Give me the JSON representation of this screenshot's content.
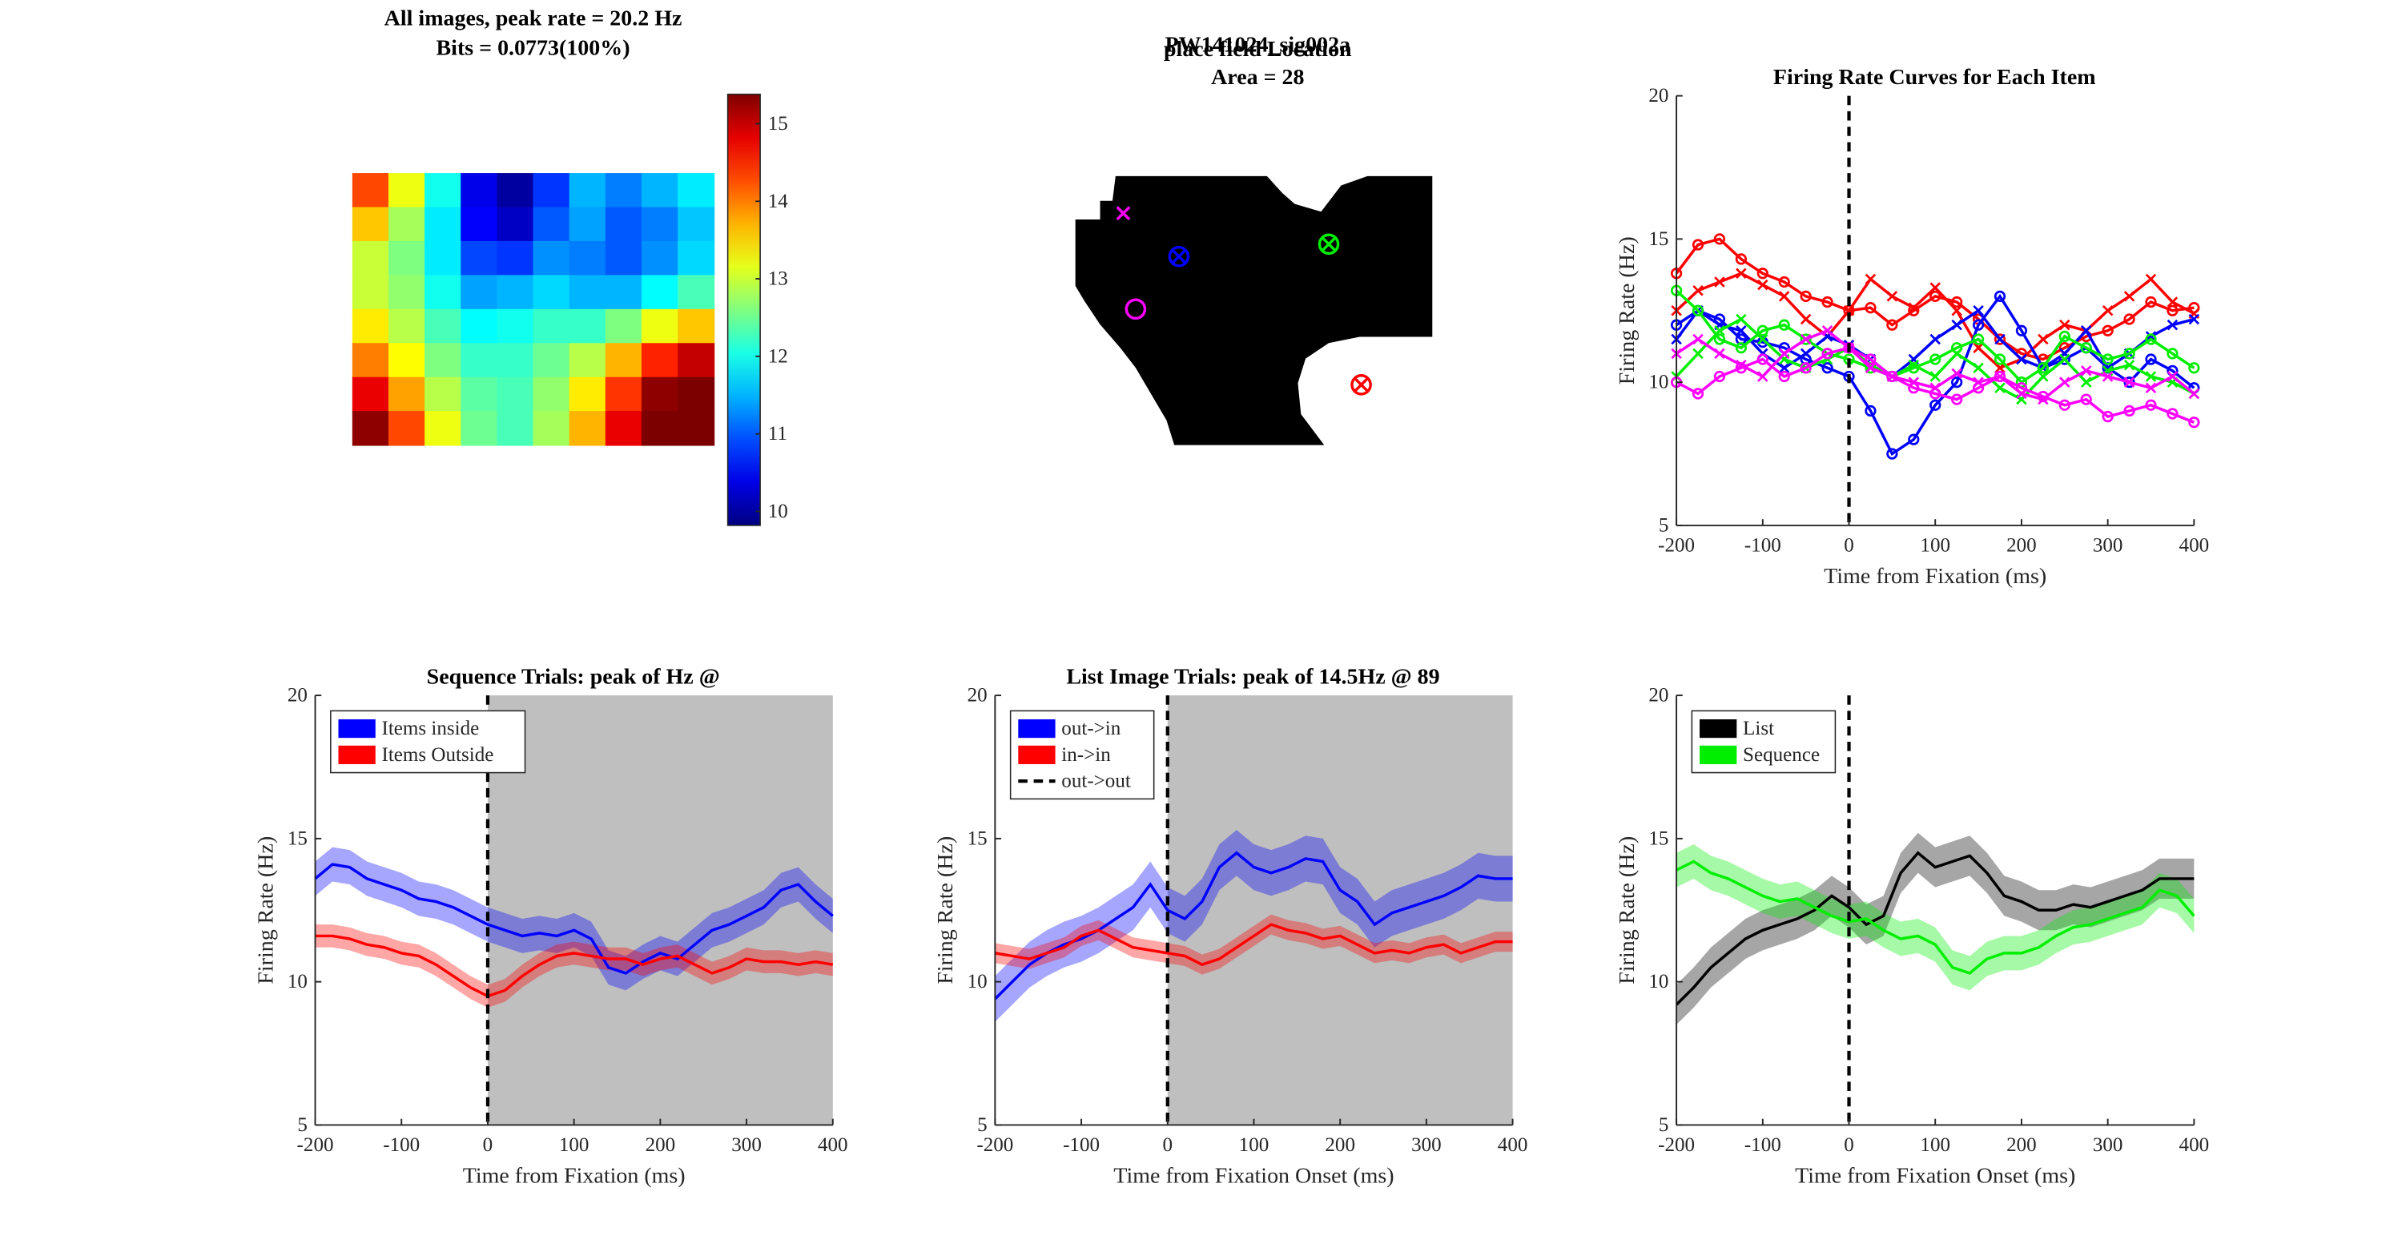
{
  "chart_data": [
    {
      "type": "heatmap",
      "title": [
        "All images, peak rate = 20.2 Hz",
        "Bits = 0.0773(100%)"
      ],
      "clim": [
        9.82,
        15.38
      ],
      "cticks": [
        10,
        11,
        12,
        13,
        14,
        15
      ],
      "colormap": "jet",
      "values": [
        [
          14.3,
          13.2,
          12.0,
          10.4,
          10.0,
          10.8,
          11.5,
          11.2,
          11.5,
          11.8
        ],
        [
          13.6,
          12.8,
          11.8,
          10.5,
          10.2,
          11.0,
          11.4,
          11.0,
          11.2,
          11.6
        ],
        [
          13.0,
          12.6,
          11.8,
          10.9,
          10.8,
          11.3,
          11.2,
          11.0,
          11.3,
          11.7
        ],
        [
          13.0,
          12.7,
          12.0,
          11.4,
          11.5,
          11.7,
          11.5,
          11.5,
          11.9,
          12.3
        ],
        [
          13.4,
          12.9,
          12.3,
          11.9,
          12.0,
          12.2,
          12.2,
          12.6,
          13.2,
          13.6
        ],
        [
          14.0,
          13.3,
          12.6,
          12.2,
          12.2,
          12.5,
          12.9,
          13.7,
          14.5,
          15.0
        ],
        [
          14.8,
          13.8,
          12.9,
          12.4,
          12.3,
          12.7,
          13.4,
          14.4,
          15.3,
          15.4
        ],
        [
          15.3,
          14.3,
          13.2,
          12.5,
          12.3,
          12.8,
          13.7,
          14.8,
          15.4,
          15.4
        ]
      ]
    },
    {
      "type": "mask",
      "title": [
        "PW141024_sig002a",
        "Area = 28"
      ],
      "overlay_title": "place field Location"
    },
    {
      "type": "line",
      "title": [
        "Firing Rate Curves for Each Item"
      ],
      "xlabel": "Time from Fixation (ms)",
      "ylabel": "Firing Rate (Hz)",
      "xlim": [
        -200,
        400
      ],
      "ylim": [
        5,
        20
      ],
      "xticks": [
        -200,
        -100,
        0,
        100,
        200,
        300,
        400
      ],
      "yticks": [
        5,
        10,
        15,
        20
      ],
      "vline": {
        "x": 0
      },
      "x": [
        -200,
        -175,
        -150,
        -125,
        -100,
        -75,
        -50,
        -25,
        0,
        25,
        50,
        75,
        100,
        125,
        150,
        175,
        200,
        225,
        250,
        275,
        300,
        325,
        350,
        375,
        400
      ],
      "series": [
        {
          "color": "#ff0000",
          "marker": "o",
          "values": [
            13.8,
            14.8,
            15.0,
            14.3,
            13.8,
            13.5,
            13.0,
            12.8,
            12.5,
            12.6,
            12.0,
            12.5,
            13.0,
            12.8,
            12.2,
            11.5,
            11.0,
            10.8,
            11.2,
            11.6,
            11.8,
            12.2,
            12.8,
            12.5,
            12.6
          ]
        },
        {
          "color": "#ff0000",
          "marker": "x",
          "values": [
            12.5,
            13.2,
            13.5,
            13.8,
            13.4,
            13.0,
            12.2,
            11.6,
            12.5,
            13.6,
            13.0,
            12.6,
            13.3,
            12.5,
            11.2,
            10.5,
            10.8,
            11.5,
            12.0,
            11.8,
            12.5,
            13.0,
            13.6,
            12.8,
            12.4
          ]
        },
        {
          "color": "#0000ff",
          "marker": "o",
          "values": [
            12.0,
            12.5,
            12.2,
            11.5,
            11.4,
            11.2,
            10.8,
            10.5,
            10.2,
            9.0,
            7.5,
            8.0,
            9.2,
            10.0,
            12.0,
            13.0,
            11.8,
            10.5,
            10.8,
            11.2,
            10.5,
            10.0,
            10.8,
            10.4,
            9.8
          ]
        },
        {
          "color": "#0000ff",
          "marker": "x",
          "values": [
            11.5,
            12.5,
            12.0,
            11.8,
            11.0,
            10.5,
            11.0,
            11.6,
            11.3,
            10.8,
            10.2,
            10.8,
            11.5,
            12.0,
            12.5,
            11.5,
            10.8,
            10.5,
            11.0,
            11.8,
            10.5,
            11.0,
            11.6,
            12.0,
            12.2
          ]
        },
        {
          "color": "#00ee00",
          "marker": "o",
          "values": [
            13.2,
            12.5,
            11.5,
            11.2,
            11.8,
            12.0,
            11.5,
            11.0,
            10.8,
            10.5,
            10.2,
            10.5,
            10.8,
            11.2,
            11.5,
            10.8,
            10.0,
            10.5,
            11.6,
            11.2,
            10.8,
            11.0,
            11.5,
            11.0,
            10.5
          ]
        },
        {
          "color": "#00ee00",
          "marker": "x",
          "values": [
            10.2,
            11.0,
            11.8,
            12.2,
            11.5,
            10.8,
            10.5,
            10.8,
            11.2,
            10.6,
            10.2,
            10.6,
            10.2,
            11.0,
            10.5,
            9.8,
            9.4,
            10.2,
            10.8,
            10.0,
            10.4,
            10.6,
            10.2,
            10.0,
            9.6
          ]
        },
        {
          "color": "#ff00ff",
          "marker": "o",
          "values": [
            10.0,
            9.6,
            10.2,
            10.5,
            10.8,
            10.2,
            10.5,
            11.0,
            11.2,
            10.8,
            10.2,
            9.8,
            9.6,
            9.4,
            9.8,
            10.2,
            9.8,
            9.5,
            9.2,
            9.4,
            8.8,
            9.0,
            9.2,
            8.9,
            8.6
          ]
        },
        {
          "color": "#ff00ff",
          "marker": "x",
          "values": [
            11.0,
            11.5,
            11.0,
            10.6,
            10.2,
            11.0,
            11.5,
            11.8,
            11.2,
            10.5,
            10.2,
            10.0,
            9.8,
            10.3,
            10.0,
            10.2,
            9.6,
            9.4,
            10.0,
            10.4,
            10.2,
            10.0,
            9.8,
            10.2,
            9.6
          ]
        }
      ]
    },
    {
      "type": "band",
      "title": [
        "Sequence Trials: peak of Hz @"
      ],
      "xlabel": "Time from Fixation (ms)",
      "ylabel": "Firing Rate (Hz)",
      "xlim": [
        -200,
        400
      ],
      "ylim": [
        5,
        20
      ],
      "xticks": [
        -200,
        -100,
        0,
        100,
        200,
        300,
        400
      ],
      "yticks": [
        5,
        10,
        15,
        20
      ],
      "vline": {
        "x": 0
      },
      "shade": [
        0,
        400
      ],
      "legend": "northwest",
      "x": [
        -200,
        -180,
        -160,
        -140,
        -120,
        -100,
        -80,
        -60,
        -40,
        -20,
        0,
        20,
        40,
        60,
        80,
        100,
        120,
        140,
        160,
        180,
        200,
        220,
        240,
        260,
        280,
        300,
        320,
        340,
        360,
        380,
        400
      ],
      "series": [
        {
          "name": "Items inside",
          "color": "#0000ff",
          "error": 0.6,
          "values": [
            13.6,
            14.1,
            14.0,
            13.6,
            13.4,
            13.2,
            12.9,
            12.8,
            12.6,
            12.3,
            12.0,
            11.8,
            11.6,
            11.7,
            11.6,
            11.8,
            11.5,
            10.5,
            10.3,
            10.7,
            11.0,
            10.8,
            11.3,
            11.8,
            12.0,
            12.3,
            12.6,
            13.2,
            13.4,
            12.8,
            12.3
          ]
        },
        {
          "name": "Items Outside",
          "color": "#ff0000",
          "error": 0.4,
          "values": [
            11.6,
            11.6,
            11.5,
            11.3,
            11.2,
            11.0,
            10.9,
            10.6,
            10.2,
            9.8,
            9.5,
            9.7,
            10.2,
            10.6,
            10.9,
            11.0,
            10.9,
            10.8,
            10.8,
            10.6,
            10.8,
            10.9,
            10.6,
            10.3,
            10.5,
            10.8,
            10.7,
            10.7,
            10.6,
            10.7,
            10.6
          ]
        }
      ]
    },
    {
      "type": "band",
      "title": [
        "List Image Trials: peak of 14.5Hz @ 89"
      ],
      "xlabel": "Time from Fixation Onset (ms)",
      "ylabel": "Firing Rate (Hz)",
      "xlim": [
        -200,
        400
      ],
      "ylim": [
        5,
        20
      ],
      "xticks": [
        -200,
        -100,
        0,
        100,
        200,
        300,
        400
      ],
      "yticks": [
        5,
        10,
        15,
        20
      ],
      "vline": {
        "x": 0,
        "name": "out->out"
      },
      "shade": [
        0,
        400
      ],
      "legend": "northwest",
      "x": [
        -200,
        -180,
        -160,
        -140,
        -120,
        -100,
        -80,
        -60,
        -40,
        -20,
        0,
        20,
        40,
        60,
        80,
        100,
        120,
        140,
        160,
        180,
        200,
        220,
        240,
        260,
        280,
        300,
        320,
        340,
        360,
        380,
        400
      ],
      "series": [
        {
          "name": "out->in",
          "color": "#0000ff",
          "error": 0.8,
          "values": [
            9.4,
            10.0,
            10.6,
            11.0,
            11.3,
            11.5,
            11.8,
            12.2,
            12.6,
            13.4,
            12.5,
            12.2,
            12.8,
            14.0,
            14.5,
            14.0,
            13.8,
            14.0,
            14.3,
            14.2,
            13.2,
            12.8,
            12.0,
            12.4,
            12.6,
            12.8,
            13.0,
            13.3,
            13.7,
            13.6,
            13.6
          ]
        },
        {
          "name": "in->in",
          "color": "#ff0000",
          "error": 0.35,
          "values": [
            11.0,
            10.9,
            10.8,
            11.0,
            11.2,
            11.6,
            11.8,
            11.5,
            11.2,
            11.1,
            11.0,
            10.9,
            10.6,
            10.8,
            11.2,
            11.6,
            12.0,
            11.8,
            11.7,
            11.5,
            11.6,
            11.3,
            11.0,
            11.1,
            11.0,
            11.2,
            11.3,
            11.0,
            11.2,
            11.4,
            11.4
          ]
        }
      ]
    },
    {
      "type": "band",
      "title": [],
      "xlabel": "Time from Fixation Onset (ms)",
      "ylabel": "Firing Rate (Hz)",
      "xlim": [
        -200,
        400
      ],
      "ylim": [
        5,
        20
      ],
      "xticks": [
        -200,
        -100,
        0,
        100,
        200,
        300,
        400
      ],
      "yticks": [
        5,
        10,
        15,
        20
      ],
      "vline": {
        "x": 0
      },
      "legend": "northwest",
      "x": [
        -200,
        -180,
        -160,
        -140,
        -120,
        -100,
        -80,
        -60,
        -40,
        -20,
        0,
        20,
        40,
        60,
        80,
        100,
        120,
        140,
        160,
        180,
        200,
        220,
        240,
        260,
        280,
        300,
        320,
        340,
        360,
        380,
        400
      ],
      "series": [
        {
          "name": "List",
          "color": "#000000",
          "error": 0.7,
          "values": [
            9.2,
            9.8,
            10.5,
            11.0,
            11.5,
            11.8,
            12.0,
            12.2,
            12.5,
            13.0,
            12.6,
            12.0,
            12.3,
            13.8,
            14.5,
            14.0,
            14.2,
            14.4,
            13.8,
            13.0,
            12.8,
            12.5,
            12.5,
            12.7,
            12.6,
            12.8,
            13.0,
            13.2,
            13.6,
            13.6,
            13.6
          ]
        },
        {
          "name": "Sequence",
          "color": "#00ee00",
          "error": 0.6,
          "values": [
            13.9,
            14.2,
            13.8,
            13.6,
            13.3,
            13.0,
            12.8,
            12.9,
            12.6,
            12.3,
            12.1,
            12.2,
            11.8,
            11.5,
            11.6,
            11.3,
            10.5,
            10.3,
            10.8,
            11.0,
            11.0,
            11.2,
            11.6,
            11.9,
            12.0,
            12.2,
            12.4,
            12.6,
            13.2,
            13.0,
            12.3
          ]
        }
      ]
    }
  ]
}
